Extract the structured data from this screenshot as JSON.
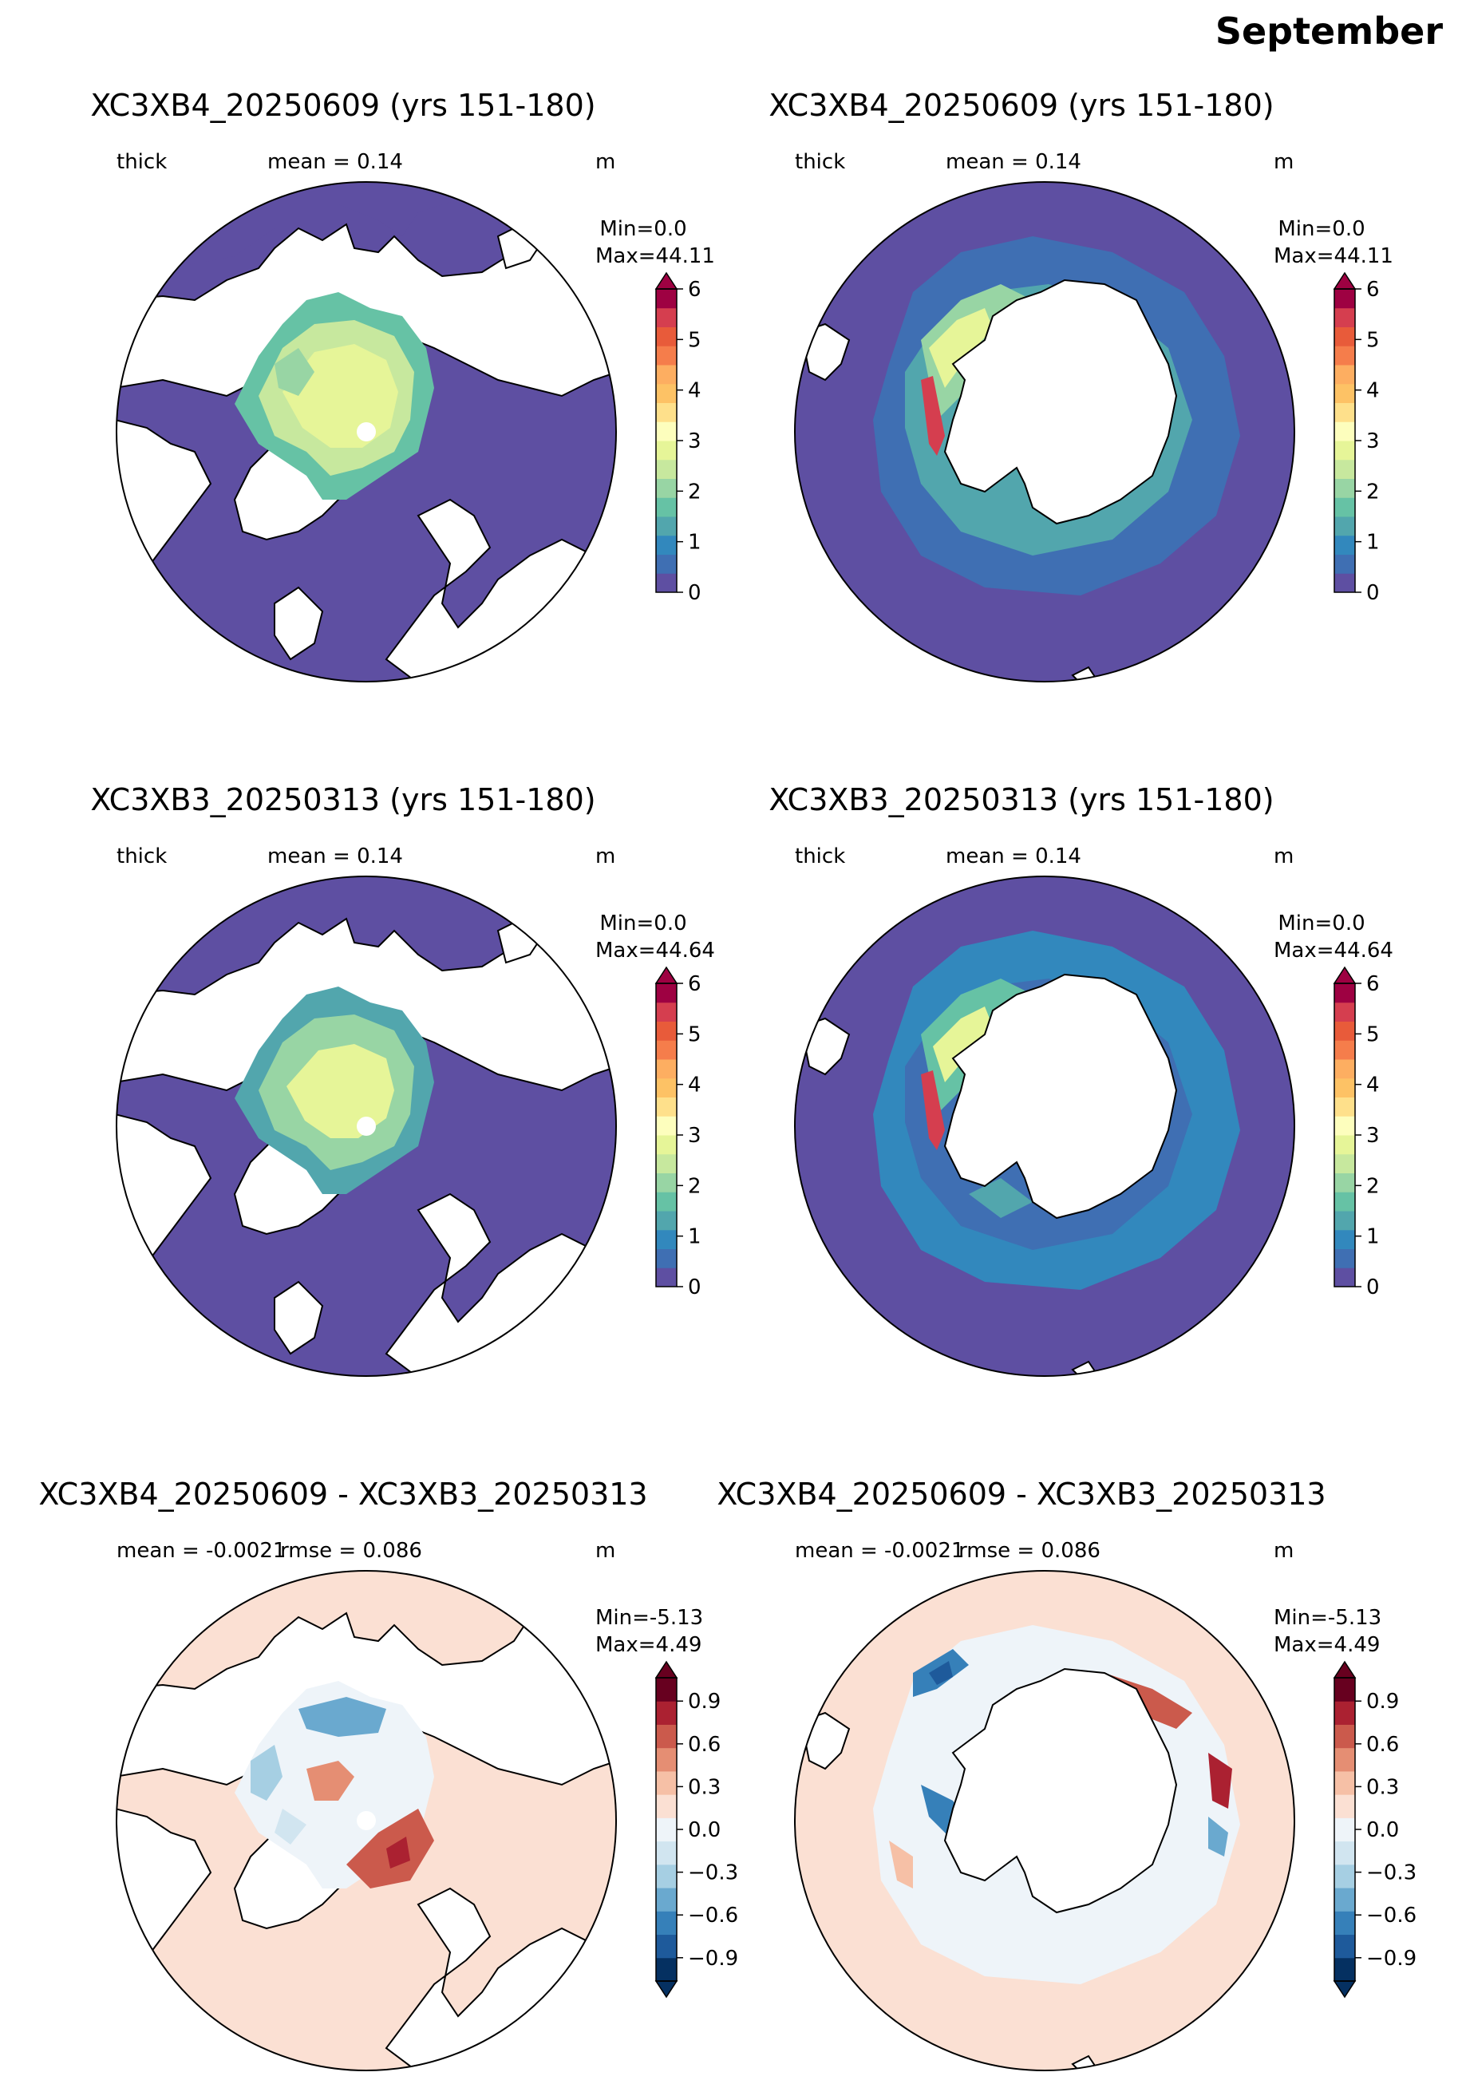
{
  "figure_title": "September",
  "colors": {
    "ocean_zero": "#5e4fa2",
    "land": "#ffffff",
    "diff_zero": "#fbe0d3",
    "coast": "#000000"
  },
  "colorbars": {
    "thick": {
      "ticks": [
        "0",
        "1",
        "2",
        "3",
        "4",
        "5",
        "6"
      ],
      "colors": [
        "#5e4fa2",
        "#3f6fb3",
        "#3288bd",
        "#52a6ad",
        "#66c2a5",
        "#98d5a4",
        "#c7e89e",
        "#e6f598",
        "#fdfebd",
        "#fee08b",
        "#fdc265",
        "#fdae61",
        "#f57d4b",
        "#e85b3a",
        "#d53e4f",
        "#9e0142"
      ],
      "extend": "max"
    },
    "diff": {
      "ticks": [
        "0.9",
        "0.6",
        "0.3",
        "0.0",
        "−0.3",
        "−0.6",
        "−0.9"
      ],
      "colors": [
        "#053061",
        "#1e5a9b",
        "#3680b9",
        "#6aa9cf",
        "#a6cfe3",
        "#d1e5f0",
        "#eef4f9",
        "#fbe0d3",
        "#f6c0a6",
        "#e58e73",
        "#cb5a4c",
        "#ab2131",
        "#67001f"
      ],
      "extend": "both"
    }
  },
  "panels": [
    {
      "hemisphere": "north",
      "kind": "thick",
      "title": "XC3XB4_20250609 (yrs 151-180)",
      "sub_left": "thick",
      "sub_center": "mean = 0.14",
      "sub_right": "m",
      "min_label": "Min=0.0",
      "max_label": "Max=44.11"
    },
    {
      "hemisphere": "south",
      "kind": "thick",
      "title": "XC3XB4_20250609 (yrs 151-180)",
      "sub_left": "thick",
      "sub_center": "mean = 0.14",
      "sub_right": "m",
      "min_label": "Min=0.0",
      "max_label": "Max=44.11"
    },
    {
      "hemisphere": "north",
      "kind": "thick",
      "title": "XC3XB3_20250313 (yrs 151-180)",
      "sub_left": "thick",
      "sub_center": "mean = 0.14",
      "sub_right": "m",
      "min_label": "Min=0.0",
      "max_label": "Max=44.64"
    },
    {
      "hemisphere": "south",
      "kind": "thick",
      "title": "XC3XB3_20250313 (yrs 151-180)",
      "sub_left": "thick",
      "sub_center": "mean = 0.14",
      "sub_right": "m",
      "min_label": "Min=0.0",
      "max_label": "Max=44.64"
    },
    {
      "hemisphere": "north",
      "kind": "diff",
      "title": "XC3XB4_20250609 - XC3XB3_20250313",
      "sub_left": "mean = -0.0021",
      "sub_center": "rmse = 0.086",
      "sub_right": "m",
      "min_label": "Min=-5.13",
      "max_label": "Max=4.49"
    },
    {
      "hemisphere": "south",
      "kind": "diff",
      "title": "XC3XB4_20250609 - XC3XB3_20250313",
      "sub_left": "mean = -0.0021",
      "sub_center": "rmse = 0.086",
      "sub_right": "m",
      "min_label": "Min=-5.13",
      "max_label": "Max=4.49"
    }
  ]
}
